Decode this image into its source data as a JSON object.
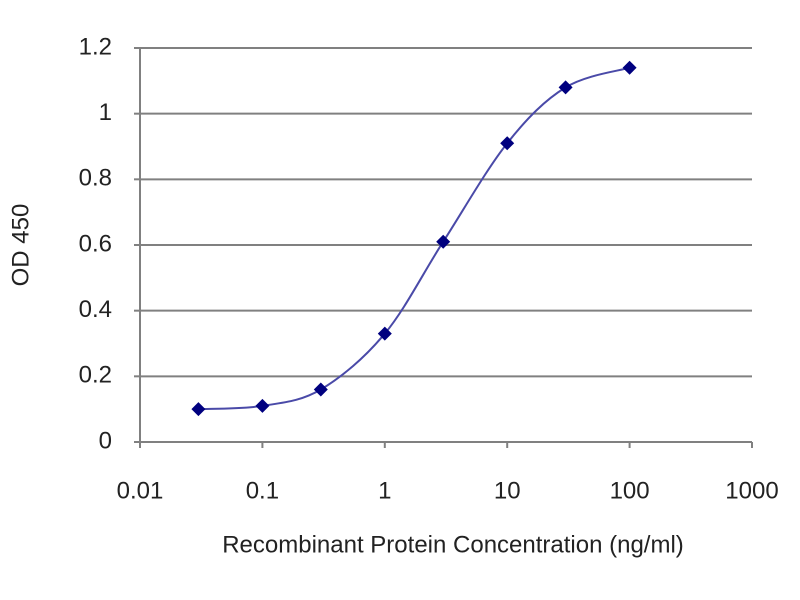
{
  "chart_data": {
    "type": "line",
    "x_label": "Recombinant Protein Concentration (ng/ml)",
    "y_label": "OD 450",
    "x": [
      0.03,
      0.1,
      0.3,
      1,
      3,
      10,
      30,
      100
    ],
    "series": [
      {
        "color": "#00007f",
        "line_color": "#4a4aa8",
        "values": [
          0.1,
          0.11,
          0.16,
          0.33,
          0.61,
          0.91,
          1.08,
          1.14
        ]
      }
    ],
    "x_log": true,
    "xlim": [
      0.01,
      1000
    ],
    "xticks": [
      0.01,
      0.1,
      1,
      10,
      100,
      1000
    ],
    "ylim": [
      0,
      1.2
    ],
    "yticks": [
      0,
      0.2,
      0.4,
      0.6,
      0.8,
      1,
      1.2
    ],
    "grid": true
  }
}
